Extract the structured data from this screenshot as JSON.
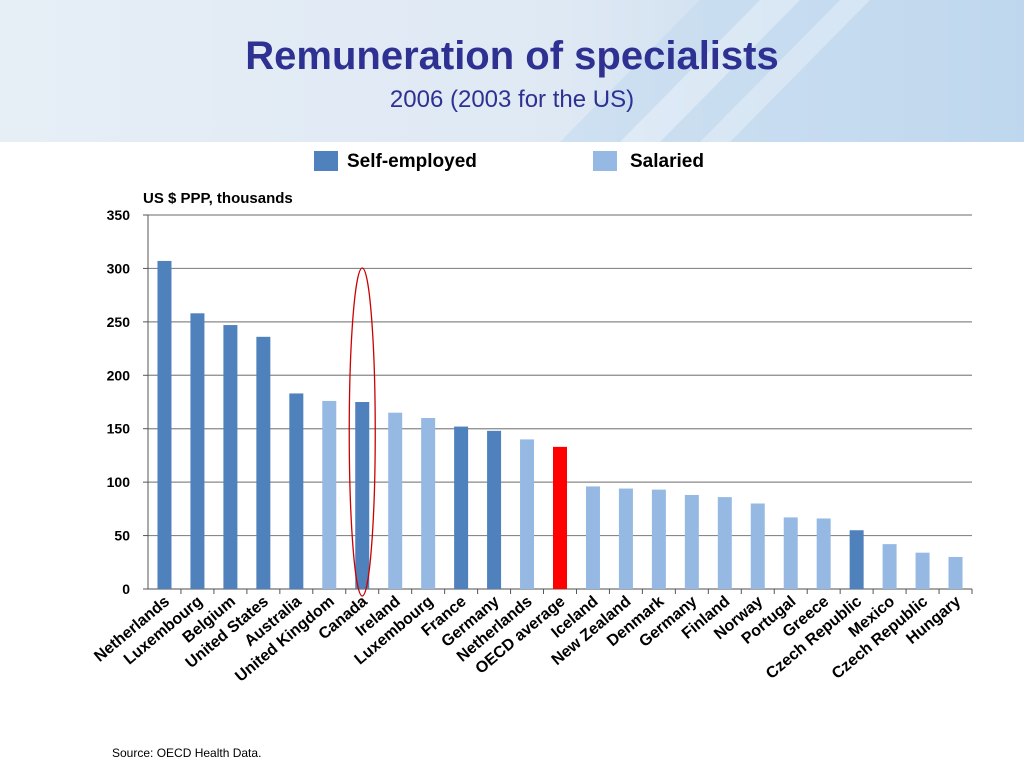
{
  "header": {
    "title": "Remuneration of specialists",
    "subtitle": "2006 (2003 for the US)"
  },
  "source": "Source: OECD Health Data.",
  "colors": {
    "self_employed": "#4f81bd",
    "salaried": "#95b9e2",
    "oecd_average": "#ff0000",
    "highlight_ellipse": "#cc0000",
    "gridline": "#888888"
  },
  "chart_data": {
    "type": "bar",
    "title": "",
    "ylabel": "US $ PPP, thousands",
    "xlabel": "",
    "ylim": [
      0,
      350
    ],
    "yticks": [
      0,
      50,
      100,
      150,
      200,
      250,
      300,
      350
    ],
    "grid": true,
    "legend_position": "top",
    "legend": [
      {
        "label": "Self-employed",
        "key": "self_employed"
      },
      {
        "label": "Salaried",
        "key": "salaried"
      }
    ],
    "bars": [
      {
        "category": "Netherlands",
        "value": 307,
        "group": "self_employed"
      },
      {
        "category": "Luxembourg",
        "value": 258,
        "group": "self_employed"
      },
      {
        "category": "Belgium",
        "value": 247,
        "group": "self_employed"
      },
      {
        "category": "United States",
        "value": 236,
        "group": "self_employed"
      },
      {
        "category": "Australia",
        "value": 183,
        "group": "self_employed"
      },
      {
        "category": "United Kingdom",
        "value": 176,
        "group": "salaried"
      },
      {
        "category": "Canada",
        "value": 175,
        "group": "self_employed"
      },
      {
        "category": "Ireland",
        "value": 165,
        "group": "salaried"
      },
      {
        "category": "Luxembourg",
        "value": 160,
        "group": "salaried"
      },
      {
        "category": "France",
        "value": 152,
        "group": "self_employed"
      },
      {
        "category": "Germany",
        "value": 148,
        "group": "self_employed"
      },
      {
        "category": "Netherlands",
        "value": 140,
        "group": "salaried"
      },
      {
        "category": "OECD average",
        "value": 133,
        "group": "oecd_average"
      },
      {
        "category": "Iceland",
        "value": 96,
        "group": "salaried"
      },
      {
        "category": "New Zealand",
        "value": 94,
        "group": "salaried"
      },
      {
        "category": "Denmark",
        "value": 93,
        "group": "salaried"
      },
      {
        "category": "Germany",
        "value": 88,
        "group": "salaried"
      },
      {
        "category": "Finland",
        "value": 86,
        "group": "salaried"
      },
      {
        "category": "Norway",
        "value": 80,
        "group": "salaried"
      },
      {
        "category": "Portugal",
        "value": 67,
        "group": "salaried"
      },
      {
        "category": "Greece",
        "value": 66,
        "group": "salaried"
      },
      {
        "category": "Czech Republic",
        "value": 55,
        "group": "self_employed"
      },
      {
        "category": "Mexico",
        "value": 42,
        "group": "salaried"
      },
      {
        "category": "Czech Republic",
        "value": 34,
        "group": "salaried"
      },
      {
        "category": "Hungary",
        "value": 30,
        "group": "salaried"
      }
    ],
    "highlighted_category_index": 6
  }
}
